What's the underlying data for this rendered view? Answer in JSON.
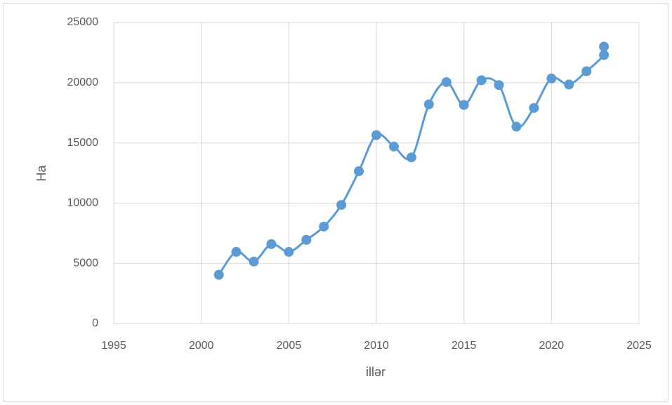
{
  "chart_data": {
    "type": "scatter",
    "smooth": true,
    "grid": true,
    "x_label": "illər",
    "y_label": "Ha",
    "x": [
      2001,
      2002,
      2003,
      2004,
      2005,
      2006,
      2007,
      2008,
      2009,
      2010,
      2011,
      2012,
      2013,
      2014,
      2015,
      2016,
      2017,
      2018,
      2019,
      2020,
      2021,
      2022,
      2023,
      2023
    ],
    "series": [
      {
        "color": "#5b9bd5",
        "values": [
          4050,
          5950,
          5150,
          6600,
          5950,
          6950,
          8050,
          9850,
          12650,
          15650,
          14700,
          13800,
          18200,
          20050,
          18150,
          20200,
          19800,
          16350,
          17900,
          20350,
          19850,
          20950,
          22300,
          23000
        ]
      }
    ],
    "xlim": [
      1995,
      2025
    ],
    "xticks": [
      1995,
      2000,
      2005,
      2010,
      2015,
      2020,
      2025
    ],
    "ylim": [
      0,
      25000
    ],
    "yticks": [
      0,
      5000,
      10000,
      15000,
      20000,
      25000
    ]
  }
}
